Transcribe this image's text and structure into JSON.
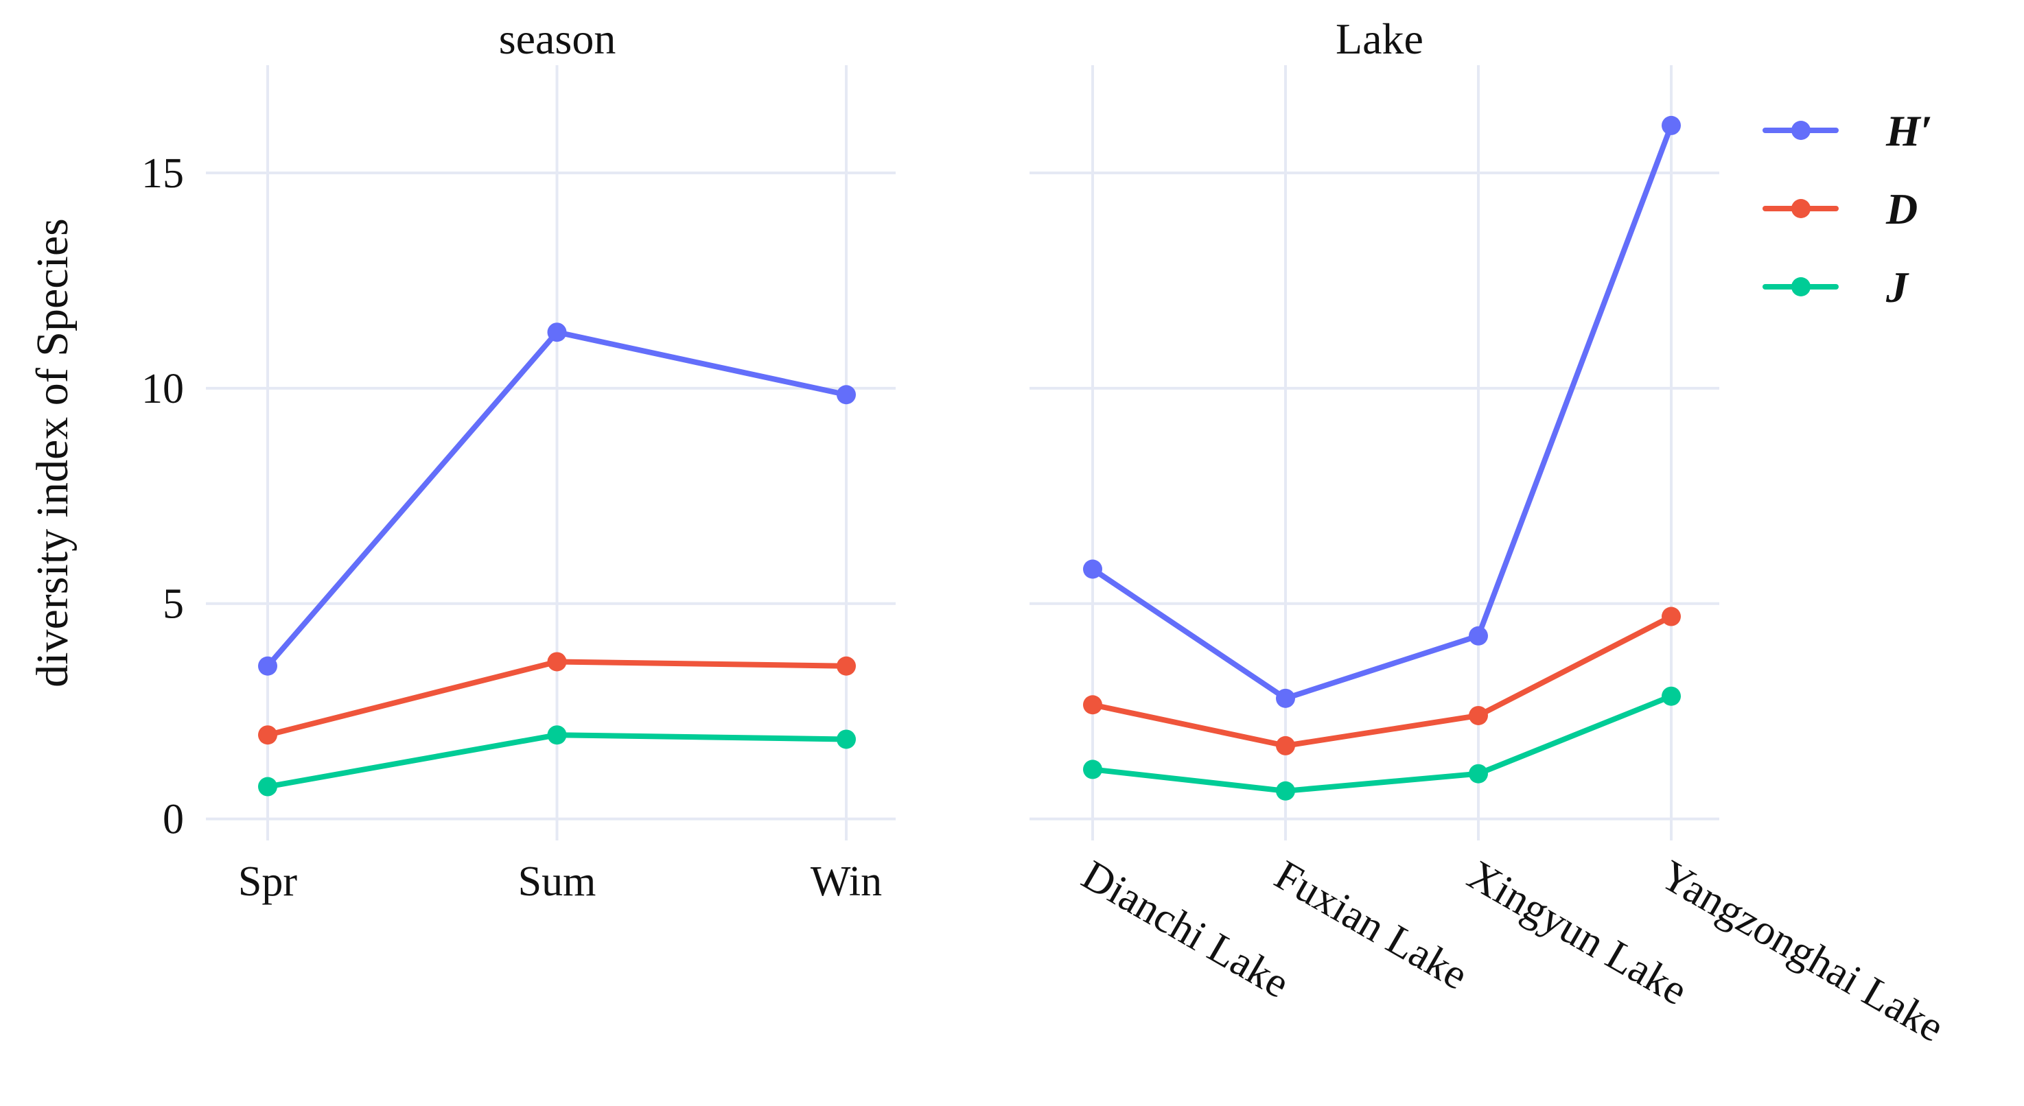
{
  "chart_data": [
    {
      "type": "line",
      "title": "season",
      "ylabel": "diversity index of Species",
      "categories": [
        "Spr",
        "Sum",
        "Win"
      ],
      "ylim": [
        -0.5,
        17.5
      ],
      "yticks": [
        0,
        5,
        10,
        15
      ],
      "series": [
        {
          "name": "H′",
          "color": "#636efa",
          "values": [
            3.55,
            11.3,
            9.85
          ]
        },
        {
          "name": "D",
          "color": "#ef553b",
          "values": [
            1.95,
            3.65,
            3.55
          ]
        },
        {
          "name": "J",
          "color": "#00cc96",
          "values": [
            0.75,
            1.95,
            1.85
          ]
        }
      ]
    },
    {
      "type": "line",
      "title": "Lake",
      "categories": [
        "Dianchi Lake",
        "Fuxian Lake",
        "Xingyun Lake",
        "Yangzonghai Lake"
      ],
      "ylim": [
        -0.5,
        17.5
      ],
      "yticks": [
        0,
        5,
        10,
        15
      ],
      "series": [
        {
          "name": "H′",
          "color": "#636efa",
          "values": [
            5.8,
            2.8,
            4.25,
            16.1
          ]
        },
        {
          "name": "D",
          "color": "#ef553b",
          "values": [
            2.65,
            1.7,
            2.4,
            4.7
          ]
        },
        {
          "name": "J",
          "color": "#00cc96",
          "values": [
            1.15,
            0.65,
            1.05,
            2.85
          ]
        }
      ]
    }
  ],
  "legend": {
    "placement": "top-right",
    "items": [
      {
        "label": "H′",
        "color": "#636efa"
      },
      {
        "label": "D",
        "color": "#ef553b"
      },
      {
        "label": "J",
        "color": "#00cc96"
      }
    ]
  }
}
